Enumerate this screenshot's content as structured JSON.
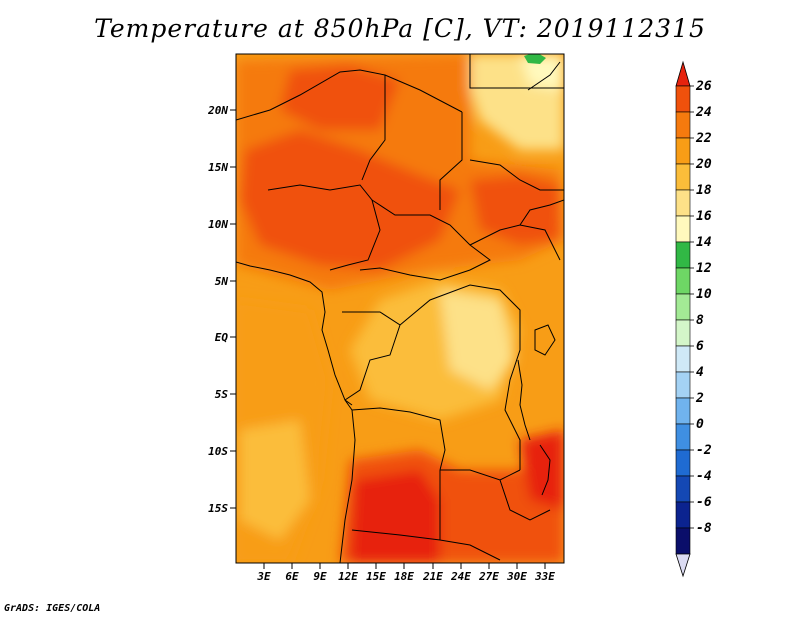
{
  "title": "Temperature at 850hPa [C], VT: 2019112315",
  "footer": "GrADS: IGES/COLA",
  "map": {
    "lat_ticks": [
      "20N",
      "15N",
      "10N",
      "5N",
      "EQ",
      "5S",
      "10S",
      "15S"
    ],
    "lon_ticks": [
      "3E",
      "6E",
      "9E",
      "12E",
      "15E",
      "18E",
      "21E",
      "24E",
      "27E",
      "30E",
      "33E"
    ]
  },
  "colorbar": {
    "levels": [
      "26",
      "24",
      "22",
      "20",
      "18",
      "16",
      "14",
      "12",
      "10",
      "8",
      "6",
      "4",
      "2",
      "0",
      "-2",
      "-4",
      "-6",
      "-8"
    ],
    "colors": [
      "#e7230e",
      "#f0510c",
      "#f57a0e",
      "#f89d16",
      "#fbbd3a",
      "#fde188",
      "#fff9bd",
      "#31b845",
      "#6ed765",
      "#a3ea95",
      "#d4f6c9",
      "#cfe9f7",
      "#a4d2f4",
      "#70b3ee",
      "#3f8fe2",
      "#1f6bd2",
      "#1448b4",
      "#0b238f",
      "#0a0e6a",
      "#dcdcf3"
    ]
  }
}
